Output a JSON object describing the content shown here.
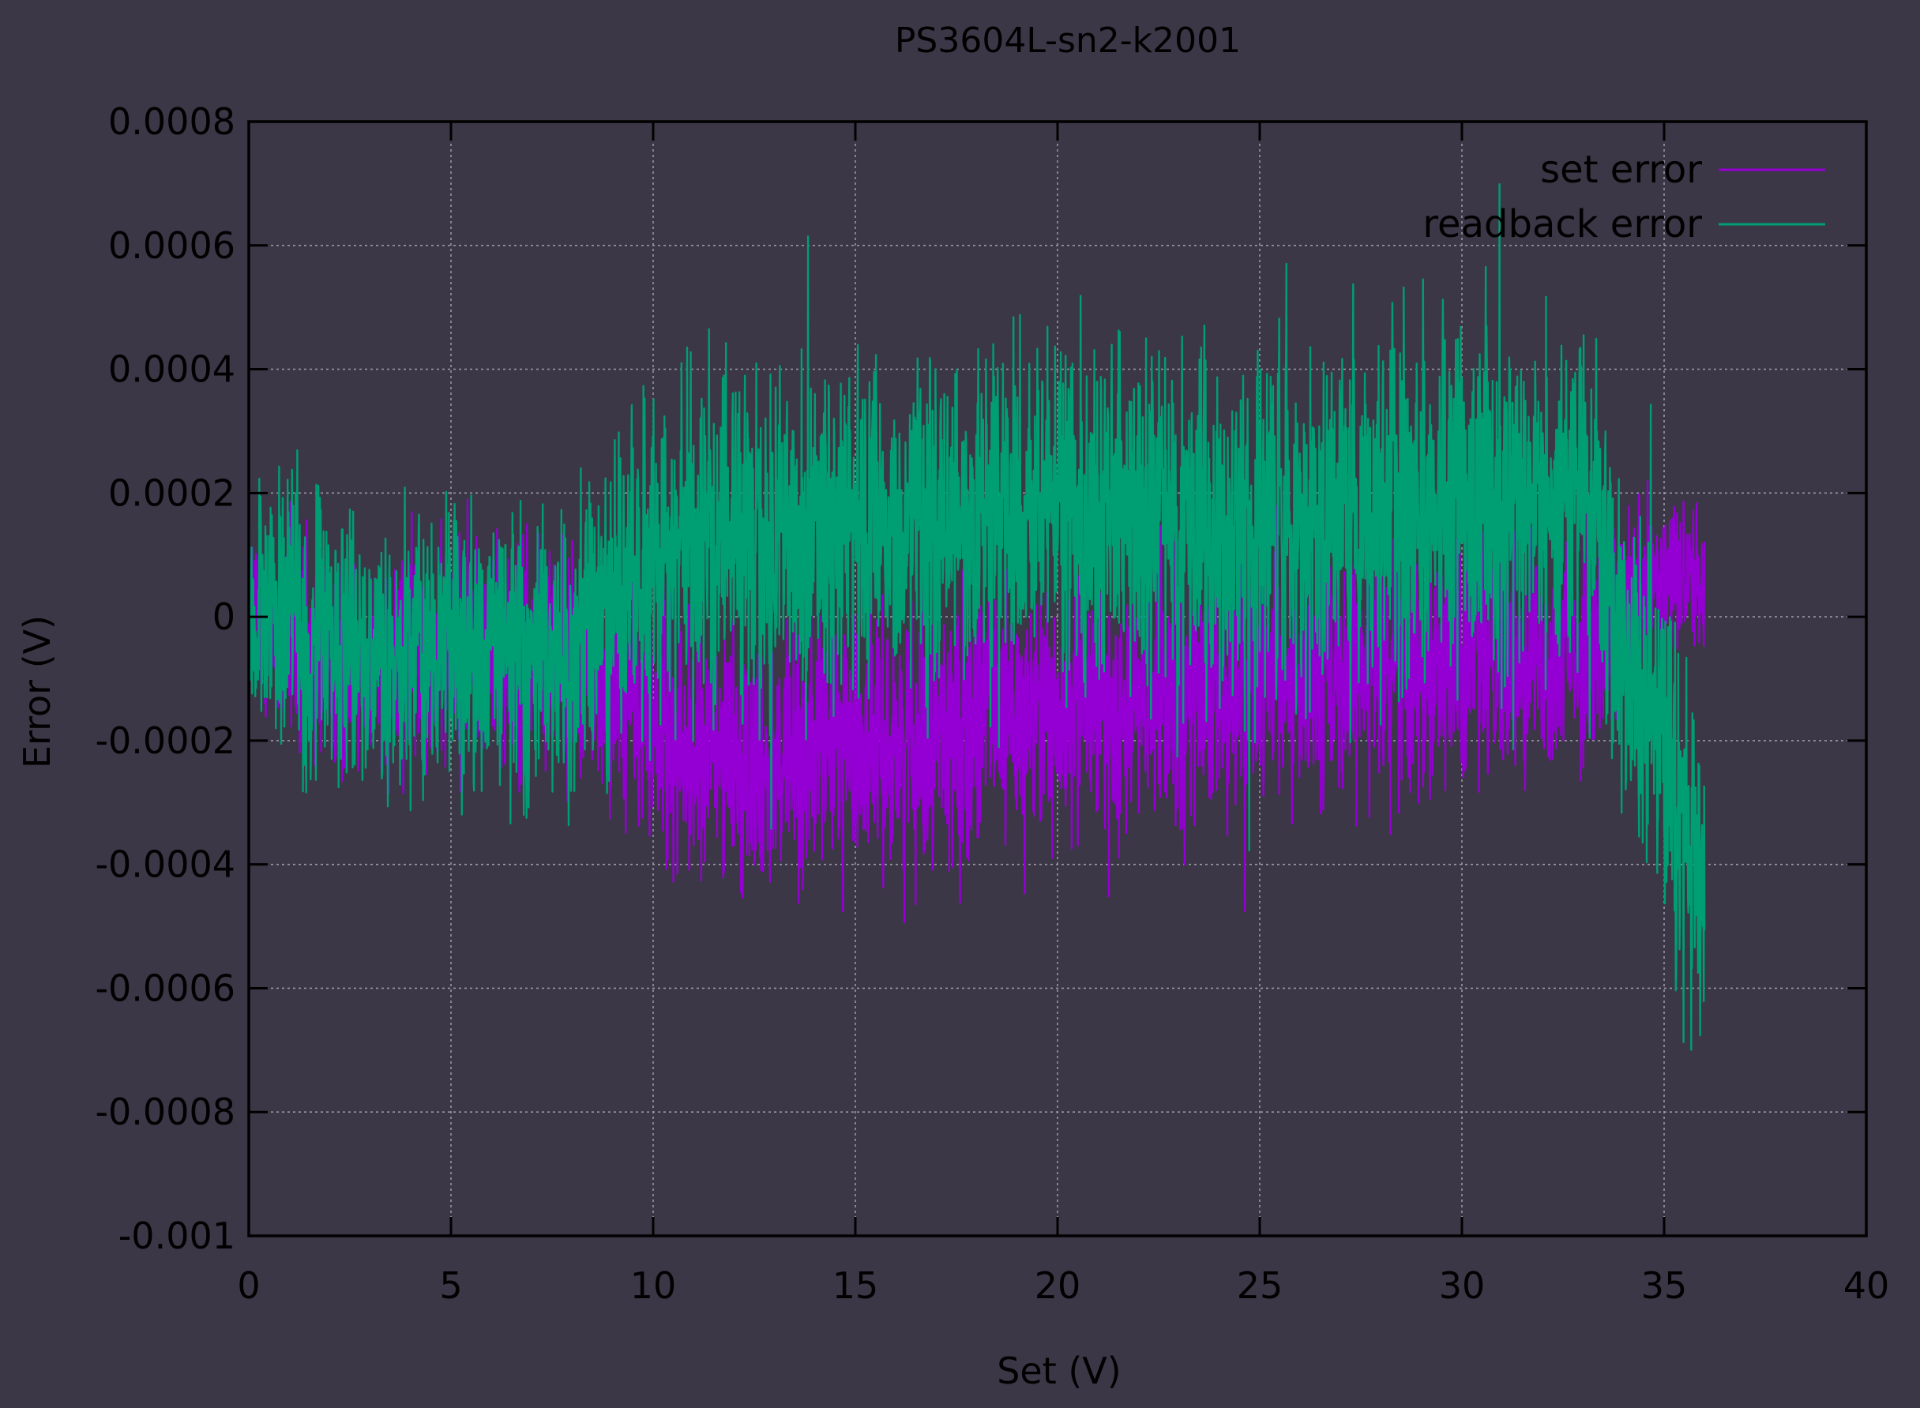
{
  "chart_data": {
    "type": "line",
    "title": "PS3604L-sn2-k2001",
    "xlabel": "Set (V)",
    "ylabel": "Error (V)",
    "xlim": [
      0,
      40
    ],
    "ylim": [
      -0.001,
      0.0008
    ],
    "x_ticks": [
      "0",
      "5",
      "10",
      "15",
      "20",
      "25",
      "30",
      "35",
      "40"
    ],
    "y_ticks": [
      "0.0008",
      "0.0006",
      "0.0004",
      "0.0002",
      "0",
      "-0.0002",
      "-0.0004",
      "-0.0006",
      "-0.0008",
      "-0.001"
    ],
    "grid": true,
    "legend_position": "top-right",
    "x": [
      0,
      1,
      2,
      3,
      4,
      5,
      6,
      7,
      8,
      9,
      10,
      11,
      12,
      13,
      14,
      15,
      16,
      17,
      18,
      19,
      20,
      21,
      22,
      23,
      24,
      25,
      26,
      27,
      28,
      29,
      30,
      31,
      32,
      33,
      34,
      35,
      35.5,
      36
    ],
    "series": [
      {
        "name": "set error",
        "color": "#9400d3",
        "center": [
          0.0,
          -5e-05,
          -8e-05,
          -8e-05,
          -7e-05,
          -5e-05,
          -5e-05,
          -6e-05,
          -7e-05,
          -0.0001,
          -0.00018,
          -0.00022,
          -0.00022,
          -0.00023,
          -0.00022,
          -0.0002,
          -0.0002,
          -0.00018,
          -0.00017,
          -0.00016,
          -0.00016,
          -0.00015,
          -0.00014,
          -0.00013,
          -0.00012,
          -0.00011,
          -0.0001,
          -9e-05,
          -8e-05,
          -7e-05,
          -6e-05,
          -6e-05,
          -5e-05,
          -4e-05,
          0.0,
          5e-05,
          8e-05,
          5e-05
        ],
        "amplitude": [
          0.00026,
          0.00027,
          0.00026,
          0.00026,
          0.00027,
          0.00026,
          0.00026,
          0.00026,
          0.00026,
          0.00028,
          0.0003,
          0.0003,
          0.0003,
          0.0003,
          0.0003,
          0.0003,
          0.0003,
          0.0003,
          0.0003,
          0.0003,
          0.0003,
          0.0003,
          0.00029,
          0.00029,
          0.00029,
          0.00029,
          0.00029,
          0.00029,
          0.00028,
          0.00028,
          0.00028,
          0.00028,
          0.00028,
          0.00028,
          0.00025,
          0.0002,
          0.00018,
          0.00015
        ]
      },
      {
        "name": "readback error",
        "color": "#009e73",
        "center": [
          2e-05,
          0.0,
          -4e-05,
          -5e-05,
          -5e-05,
          -4e-05,
          -5e-05,
          -5e-05,
          -6e-05,
          2e-05,
          0.0001,
          0.00012,
          0.00013,
          0.00013,
          0.00014,
          0.00015,
          0.00015,
          0.00015,
          0.00016,
          0.00017,
          0.00018,
          0.00017,
          0.00016,
          0.00015,
          0.00014,
          0.00014,
          0.00014,
          0.00015,
          0.00016,
          0.00017,
          0.00018,
          0.00019,
          0.0002,
          0.0002,
          -5e-05,
          -0.0002,
          -0.00035,
          -0.00045
        ],
        "amplitude": [
          0.00034,
          0.00033,
          0.00033,
          0.00032,
          0.00032,
          0.00032,
          0.00032,
          0.00032,
          0.00033,
          0.00036,
          0.0004,
          0.0004,
          0.0004,
          0.0004,
          0.0004,
          0.0004,
          0.0004,
          0.0004,
          0.0004,
          0.0004,
          0.0004,
          0.0004,
          0.00039,
          0.00039,
          0.00039,
          0.00039,
          0.00039,
          0.00039,
          0.00039,
          0.00039,
          0.0004,
          0.0004,
          0.0004,
          0.0004,
          0.0004,
          0.0004,
          0.0004,
          0.00042
        ]
      }
    ]
  }
}
